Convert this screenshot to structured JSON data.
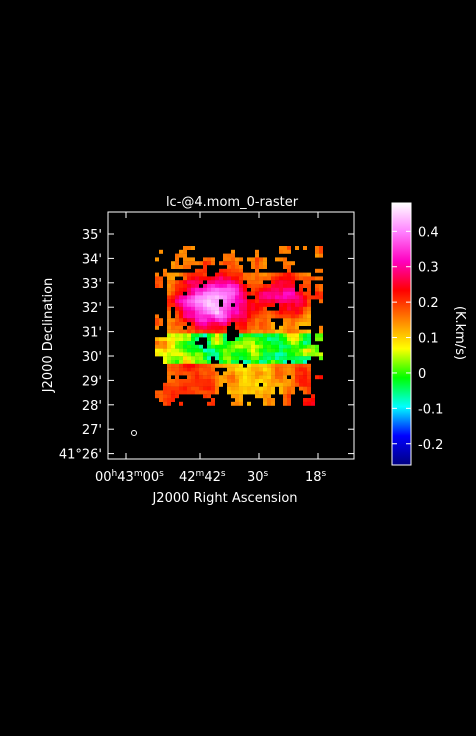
{
  "chart_data": {
    "type": "heatmap",
    "title": "lc-@4.mom_0-raster",
    "xlabel": "J2000 Right Ascension",
    "ylabel": "J2000 Declination",
    "x_ticks": [
      {
        "h": "00",
        "m": "43",
        "s": "00",
        "label": "00h43m00s"
      },
      {
        "m": "42",
        "s": "42",
        "label": "42m42s"
      },
      {
        "s": "30",
        "label": "30s"
      },
      {
        "s": "18",
        "label": "18s"
      }
    ],
    "y_ticks": [
      "35'",
      "34'",
      "33'",
      "32'",
      "31'",
      "30'",
      "29'",
      "28'",
      "27'",
      "41°26'"
    ],
    "colorbar": {
      "label": "(K.km/s)",
      "range": [
        -0.26,
        0.48
      ],
      "ticks": [
        "0.4",
        "0.3",
        "0.2",
        "0.1",
        "0",
        "-0.1",
        "-0.2"
      ],
      "tick_values": [
        0.4,
        0.3,
        0.2,
        0.1,
        0,
        -0.1,
        -0.2
      ],
      "colors": [
        "#000080",
        "#0000ff",
        "#00ffff",
        "#00ff00",
        "#ffff00",
        "#ff8000",
        "#ff0000",
        "#ff00c0",
        "#ff80ff",
        "#ffffff"
      ]
    },
    "map_features": [
      {
        "region": "north",
        "description": "bright magenta emission peaking around 0.4 K.km/s"
      },
      {
        "region": "center",
        "description": "green/cyan/blue low and negative values"
      },
      {
        "region": "south",
        "description": "red/magenta band around 0.15-0.25 K.km/s"
      }
    ],
    "beam": "small circle lower-left"
  }
}
